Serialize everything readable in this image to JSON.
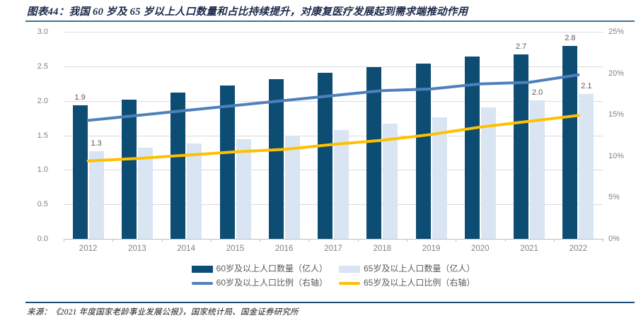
{
  "title": "图表44：我国 60 岁及 65 岁以上人口数量和占比持续提升，对康复医疗发展起到需求端推动作用",
  "source": "来源：《2021 年度国家老龄事业发展公报》，国家统计局、国金证券研究所",
  "colors": {
    "title_text": "#1B2A4A",
    "title_rule": "#3C7493",
    "footer_rule": "#1F4E79",
    "source_text": "#1A1A1A",
    "grid": "#DADADA",
    "axis_line": "#BFBFBF",
    "tick_text": "#808080",
    "value_label": "#595959",
    "legend_text": "#595959",
    "bar_dark": "#0E4D73",
    "bar_light": "#D9E5F2",
    "line_blue": "#4E80BC",
    "line_yellow": "#FFC000"
  },
  "chart_data": {
    "type": "bar+line combo",
    "categories": [
      "2012",
      "2013",
      "2014",
      "2015",
      "2016",
      "2017",
      "2018",
      "2019",
      "2020",
      "2021",
      "2022"
    ],
    "left_axis": {
      "min": 0,
      "max": 3,
      "step": 0.5,
      "ticks": [
        {
          "value": 3.0,
          "label": "3.0"
        },
        {
          "value": 2.5,
          "label": "2.5"
        },
        {
          "value": 2.0,
          "label": "2.0"
        },
        {
          "value": 1.5,
          "label": "1.5"
        },
        {
          "value": 1.0,
          "label": "1.0"
        },
        {
          "value": 0.5,
          "label": "0.5"
        },
        {
          "value": 0.0,
          "label": "0.0"
        }
      ]
    },
    "right_axis": {
      "min": 0,
      "max": 25,
      "step": 5,
      "ticks": [
        {
          "value": 25,
          "label": "25%"
        },
        {
          "value": 20,
          "label": "20%"
        },
        {
          "value": 15,
          "label": "15%"
        },
        {
          "value": 10,
          "label": "10%"
        },
        {
          "value": 5,
          "label": "5%"
        },
        {
          "value": 0,
          "label": "0%"
        }
      ]
    },
    "series": [
      {
        "key": "pop60",
        "name": "60岁及以上人口数量（亿人）",
        "type": "bar",
        "axis": "left",
        "color": "#0E4D73",
        "values": [
          1.94,
          2.02,
          2.12,
          2.22,
          2.31,
          2.41,
          2.49,
          2.54,
          2.64,
          2.67,
          2.8
        ]
      },
      {
        "key": "pop65",
        "name": "65岁及以上人口数量（亿人）",
        "type": "bar",
        "axis": "left",
        "color": "#D9E5F2",
        "values": [
          1.27,
          1.32,
          1.38,
          1.44,
          1.5,
          1.58,
          1.67,
          1.76,
          1.91,
          2.01,
          2.1
        ]
      },
      {
        "key": "ratio60",
        "name": "60岁及以上人口比例（右轴）",
        "type": "line",
        "axis": "right",
        "color": "#4E80BC",
        "values": [
          14.3,
          14.9,
          15.5,
          16.1,
          16.7,
          17.3,
          17.9,
          18.1,
          18.7,
          18.9,
          19.8
        ]
      },
      {
        "key": "ratio65",
        "name": "65岁及以上人口比例（右轴）",
        "type": "line",
        "axis": "right",
        "color": "#FFC000",
        "values": [
          9.4,
          9.7,
          10.1,
          10.5,
          10.8,
          11.4,
          11.9,
          12.6,
          13.5,
          14.2,
          14.9
        ]
      }
    ],
    "annotations": [
      {
        "category": "2012",
        "series": "pop60",
        "text": "1.9"
      },
      {
        "category": "2012",
        "series": "pop65",
        "text": "1.3"
      },
      {
        "category": "2021",
        "series": "pop60",
        "text": "2.7"
      },
      {
        "category": "2021",
        "series": "pop65",
        "text": "2.0"
      },
      {
        "category": "2022",
        "series": "pop60",
        "text": "2.8"
      },
      {
        "category": "2022",
        "series": "pop65",
        "text": "2.1"
      }
    ],
    "legend_position": "bottom",
    "grid": true
  }
}
